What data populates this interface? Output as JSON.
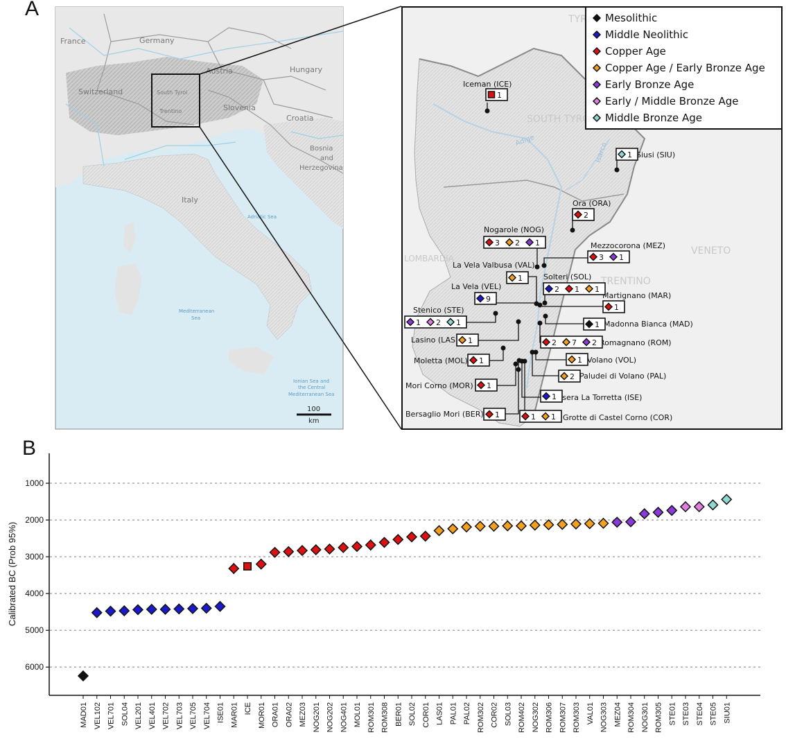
{
  "panel_a": {
    "label": "A",
    "overview_labels": [
      {
        "id": "france",
        "text": "France"
      },
      {
        "id": "germany",
        "text": "Germany"
      },
      {
        "id": "austria",
        "text": "Austria"
      },
      {
        "id": "hungary",
        "text": "Hungary"
      },
      {
        "id": "switzerland",
        "text": "Switzerland"
      },
      {
        "id": "southtyrol",
        "text": "South Tyrol"
      },
      {
        "id": "trentino",
        "text": "Trentino"
      },
      {
        "id": "slovenia",
        "text": "Slovenia"
      },
      {
        "id": "croatia",
        "text": "Croatia"
      },
      {
        "id": "bosnia1",
        "text": "Bosnia"
      },
      {
        "id": "bosnia2",
        "text": "and"
      },
      {
        "id": "bosnia3",
        "text": "Herzegovina"
      },
      {
        "id": "italy",
        "text": "Italy"
      },
      {
        "id": "adriatic",
        "text": "Adriatic Sea"
      },
      {
        "id": "med1",
        "text": "Mediterranean"
      },
      {
        "id": "med2",
        "text": "Sea"
      },
      {
        "id": "ionian1",
        "text": "Ionian Sea and"
      },
      {
        "id": "ionian2",
        "text": "the Central"
      },
      {
        "id": "ionian3",
        "text": "Mediterranean Sea"
      }
    ],
    "scale_value": "100",
    "scale_unit": "km",
    "detail_labels": [
      {
        "id": "southtyrol",
        "text": "SOUTH TYROL"
      },
      {
        "id": "tyrol",
        "text": "TYR"
      },
      {
        "id": "lombardia",
        "text": "LOMBARDIA"
      },
      {
        "id": "veneto",
        "text": "VENETO"
      },
      {
        "id": "trentino",
        "text": "TRENTINO"
      },
      {
        "id": "adige",
        "text": "Adige"
      },
      {
        "id": "isarco",
        "text": "Isarco"
      }
    ],
    "legend": [
      {
        "label": "Mesolithic",
        "color": "#111111"
      },
      {
        "label": "Middle Neolithic",
        "color": "#1a1acc"
      },
      {
        "label": "Copper Age",
        "color": "#dd1111"
      },
      {
        "label": "Copper Age / Early Bronze Age",
        "color": "#f3a020"
      },
      {
        "label": "Early Bronze Age",
        "color": "#8a3ad8"
      },
      {
        "label": "Early / Middle Bronze Age",
        "color": "#e07ee0"
      },
      {
        "label": "Middle Bronze Age",
        "color": "#8fd8d2"
      }
    ],
    "sites": [
      {
        "name": "Iceman (ICE)",
        "items": [
          {
            "period": "Copper Age",
            "count": "1",
            "marker": "square"
          }
        ]
      },
      {
        "name": "Siusi (SIU)",
        "items": [
          {
            "period": "Middle Bronze Age",
            "count": "1"
          }
        ]
      },
      {
        "name": "Ora (ORA)",
        "items": [
          {
            "period": "Copper Age",
            "count": "2"
          }
        ]
      },
      {
        "name": "Nogarole (NOG)",
        "items": [
          {
            "period": "Copper Age",
            "count": "3"
          },
          {
            "period": "Copper Age / Early Bronze Age",
            "count": "2"
          },
          {
            "period": "Early Bronze Age",
            "count": "1"
          }
        ]
      },
      {
        "name": "Mezzocorona (MEZ)",
        "items": [
          {
            "period": "Copper Age",
            "count": "3"
          },
          {
            "period": "Early Bronze Age",
            "count": "1"
          }
        ]
      },
      {
        "name": "La Vela Valbusa (VAL)",
        "items": [
          {
            "period": "Copper Age / Early Bronze Age",
            "count": "1"
          }
        ]
      },
      {
        "name": "La Vela (VEL)",
        "items": [
          {
            "period": "Middle Neolithic",
            "count": "9"
          }
        ]
      },
      {
        "name": "Solteri (SOL)",
        "items": [
          {
            "period": "Middle Neolithic",
            "count": "2"
          },
          {
            "period": "Copper Age",
            "count": "1"
          },
          {
            "period": "Copper Age / Early Bronze Age",
            "count": "1"
          }
        ]
      },
      {
        "name": "Martignano (MAR)",
        "items": [
          {
            "period": "Copper Age",
            "count": "1"
          }
        ]
      },
      {
        "name": "Stenico (STE)",
        "items": [
          {
            "period": "Early Bronze Age",
            "count": "1"
          },
          {
            "period": "Early / Middle Bronze Age",
            "count": "2"
          },
          {
            "period": "Middle Bronze Age",
            "count": "1"
          }
        ]
      },
      {
        "name": "Madonna Bianca (MAD)",
        "items": [
          {
            "period": "Mesolithic",
            "count": "1"
          }
        ]
      },
      {
        "name": "Lasino (LAS)",
        "items": [
          {
            "period": "Copper Age / Early Bronze Age",
            "count": "1"
          }
        ]
      },
      {
        "name": "Romagnano  (ROM)",
        "items": [
          {
            "period": "Copper Age",
            "count": "2"
          },
          {
            "period": "Copper Age / Early Bronze Age",
            "count": "7"
          },
          {
            "period": "Early Bronze Age",
            "count": "2"
          }
        ]
      },
      {
        "name": "Moletta (MOL)",
        "items": [
          {
            "period": "Copper Age",
            "count": "1"
          }
        ]
      },
      {
        "name": "Volano (VOL)",
        "items": [
          {
            "period": "Copper Age / Early Bronze Age",
            "count": "1"
          }
        ]
      },
      {
        "name": "Paludei di Volano (PAL)",
        "items": [
          {
            "period": "Copper Age / Early Bronze Age",
            "count": "2"
          }
        ]
      },
      {
        "name": "Mori Corno (MOR)",
        "items": [
          {
            "period": "Copper Age",
            "count": "1"
          }
        ]
      },
      {
        "name": "Isera La Torretta (ISE)",
        "items": [
          {
            "period": "Middle Neolithic",
            "count": "1"
          }
        ]
      },
      {
        "name": "Bersaglio Mori (BER)",
        "items": [
          {
            "period": "Copper Age",
            "count": "1"
          }
        ]
      },
      {
        "name": "Grotte di Castel Corno (COR)",
        "items": [
          {
            "period": "Copper Age",
            "count": "1"
          },
          {
            "period": "Copper Age / Early Bronze Age",
            "count": "1"
          }
        ]
      }
    ]
  },
  "panel_b": {
    "label": "B"
  },
  "chart_data": {
    "type": "scatter",
    "title": "",
    "xlabel": "",
    "ylabel": "Calibrated BC (Prob 95%)",
    "ylim": [
      0,
      6800
    ],
    "y_inverted": true,
    "yticks": [
      1000,
      2000,
      3000,
      4000,
      5000,
      6000
    ],
    "grid": "horizontal dotted",
    "categories": [
      "MAD01",
      "VEL102",
      "VEL701",
      "SOL04",
      "VEL201",
      "VEL401",
      "VEL702",
      "VEL703",
      "VEL705",
      "VEL704",
      "ISE01",
      "MAR01",
      "ICE",
      "MOR01",
      "ORA01",
      "ORA02",
      "MEZ03",
      "NOG201",
      "NOG202",
      "NOG401",
      "MOL01",
      "ROM301",
      "ROM308",
      "BER01",
      "SOL02",
      "COR01",
      "LAS01",
      "PAL01",
      "PAL02",
      "ROM302",
      "COR02",
      "SOL03",
      "ROM402",
      "NOG302",
      "ROM306",
      "ROM307",
      "ROM303",
      "VAL01",
      "NOG303",
      "MEZ04",
      "ROM304",
      "NOG301",
      "ROM305",
      "STE01",
      "STE03",
      "STE04",
      "STE05",
      "SIU01"
    ],
    "values": [
      6240,
      4520,
      4480,
      4470,
      4440,
      4430,
      4430,
      4420,
      4410,
      4400,
      4350,
      3320,
      3260,
      3200,
      2880,
      2860,
      2830,
      2810,
      2790,
      2750,
      2720,
      2680,
      2610,
      2530,
      2460,
      2440,
      2290,
      2240,
      2190,
      2170,
      2170,
      2160,
      2160,
      2140,
      2130,
      2120,
      2110,
      2100,
      2090,
      2060,
      2050,
      1830,
      1790,
      1740,
      1640,
      1640,
      1590,
      1440
    ],
    "periods": [
      "Mesolithic",
      "Middle Neolithic",
      "Middle Neolithic",
      "Middle Neolithic",
      "Middle Neolithic",
      "Middle Neolithic",
      "Middle Neolithic",
      "Middle Neolithic",
      "Middle Neolithic",
      "Middle Neolithic",
      "Middle Neolithic",
      "Copper Age",
      "Copper Age",
      "Copper Age",
      "Copper Age",
      "Copper Age",
      "Copper Age",
      "Copper Age",
      "Copper Age",
      "Copper Age",
      "Copper Age",
      "Copper Age",
      "Copper Age",
      "Copper Age",
      "Copper Age",
      "Copper Age",
      "Copper Age / Early Bronze Age",
      "Copper Age / Early Bronze Age",
      "Copper Age / Early Bronze Age",
      "Copper Age / Early Bronze Age",
      "Copper Age / Early Bronze Age",
      "Copper Age / Early Bronze Age",
      "Copper Age / Early Bronze Age",
      "Copper Age / Early Bronze Age",
      "Copper Age / Early Bronze Age",
      "Copper Age / Early Bronze Age",
      "Copper Age / Early Bronze Age",
      "Copper Age / Early Bronze Age",
      "Copper Age / Early Bronze Age",
      "Early Bronze Age",
      "Early Bronze Age",
      "Early Bronze Age",
      "Early Bronze Age",
      "Early Bronze Age",
      "Early / Middle Bronze Age",
      "Early / Middle Bronze Age",
      "Middle Bronze Age",
      "Middle Bronze Age"
    ],
    "markers": [
      "diamond",
      "diamond",
      "diamond",
      "diamond",
      "diamond",
      "diamond",
      "diamond",
      "diamond",
      "diamond",
      "diamond",
      "diamond",
      "diamond",
      "square",
      "diamond",
      "diamond",
      "diamond",
      "diamond",
      "diamond",
      "diamond",
      "diamond",
      "diamond",
      "diamond",
      "diamond",
      "diamond",
      "diamond",
      "diamond",
      "diamond",
      "diamond",
      "diamond",
      "diamond",
      "diamond",
      "diamond",
      "diamond",
      "diamond",
      "diamond",
      "diamond",
      "diamond",
      "diamond",
      "diamond",
      "diamond",
      "diamond",
      "diamond",
      "diamond",
      "diamond",
      "diamond",
      "diamond",
      "diamond",
      "diamond"
    ],
    "errors": [
      60,
      40,
      40,
      40,
      40,
      40,
      40,
      40,
      40,
      40,
      50,
      150,
      90,
      110,
      110,
      90,
      60,
      60,
      60,
      70,
      110,
      150,
      80,
      60,
      60,
      110,
      50,
      50,
      50,
      50,
      50,
      50,
      50,
      50,
      50,
      50,
      50,
      70,
      50,
      50,
      50,
      50,
      50,
      50,
      50,
      50,
      50,
      60
    ]
  }
}
